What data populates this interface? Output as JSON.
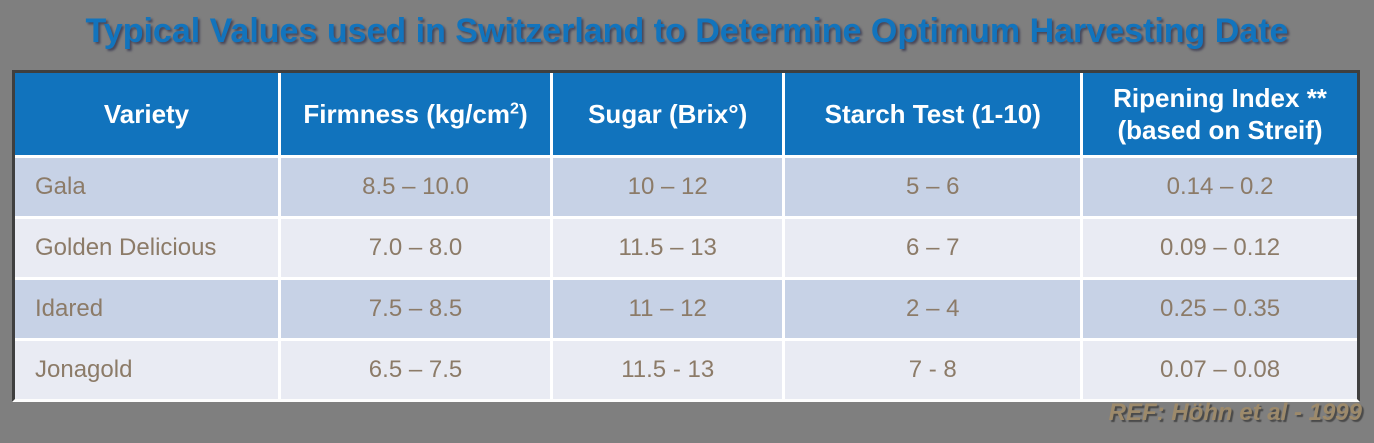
{
  "title": "Typical Values used in Switzerland to Determine Optimum Harvesting Date",
  "colors": {
    "background_gray": "#7F7F7F",
    "title_blue": "#1274BD",
    "header_blue": "#1173BD",
    "row_odd_bg": "#C7D2E6",
    "row_even_bg": "#E9EBF3",
    "cell_text_brown": "#8C7B68",
    "header_text": "#FFFFFF",
    "ref_text_tan": "#9D8A6B",
    "table_border": "#3F3F3F"
  },
  "header_display": {
    "variety": "Variety",
    "firmness_pre": "Firmness (kg/cm",
    "firmness_sup": "2",
    "firmness_post": ")",
    "sugar": "Sugar (Brix°)",
    "starch": "Starch Test (1-10)",
    "ripening_line1": "Ripening Index **",
    "ripening_line2": "(based on Streif)"
  },
  "chart_data": {
    "type": "table",
    "title": "Typical Values used in Switzerland to Determine Optimum Harvesting Date",
    "columns": [
      "Variety",
      "Firmness (kg/cm2)",
      "Sugar (Brix°)",
      "Starch Test (1-10)",
      "Ripening Index ** (based on Streif)"
    ],
    "rows": [
      [
        "Gala",
        "8.5 – 10.0",
        "10 – 12",
        "5 – 6",
        "0.14 – 0.2"
      ],
      [
        "Golden Delicious",
        "7.0 – 8.0",
        "11.5 – 13",
        "6 – 7",
        "0.09 – 0.12"
      ],
      [
        "Idared",
        "7.5 – 8.5",
        "11 – 12",
        "2 – 4",
        "0.25 – 0.35"
      ],
      [
        "Jonagold",
        "6.5 – 7.5",
        "11.5 - 13",
        "7 - 8",
        "0.07 – 0.08"
      ]
    ]
  },
  "footer": {
    "reference": "REF: Höhn et al - 1999"
  }
}
